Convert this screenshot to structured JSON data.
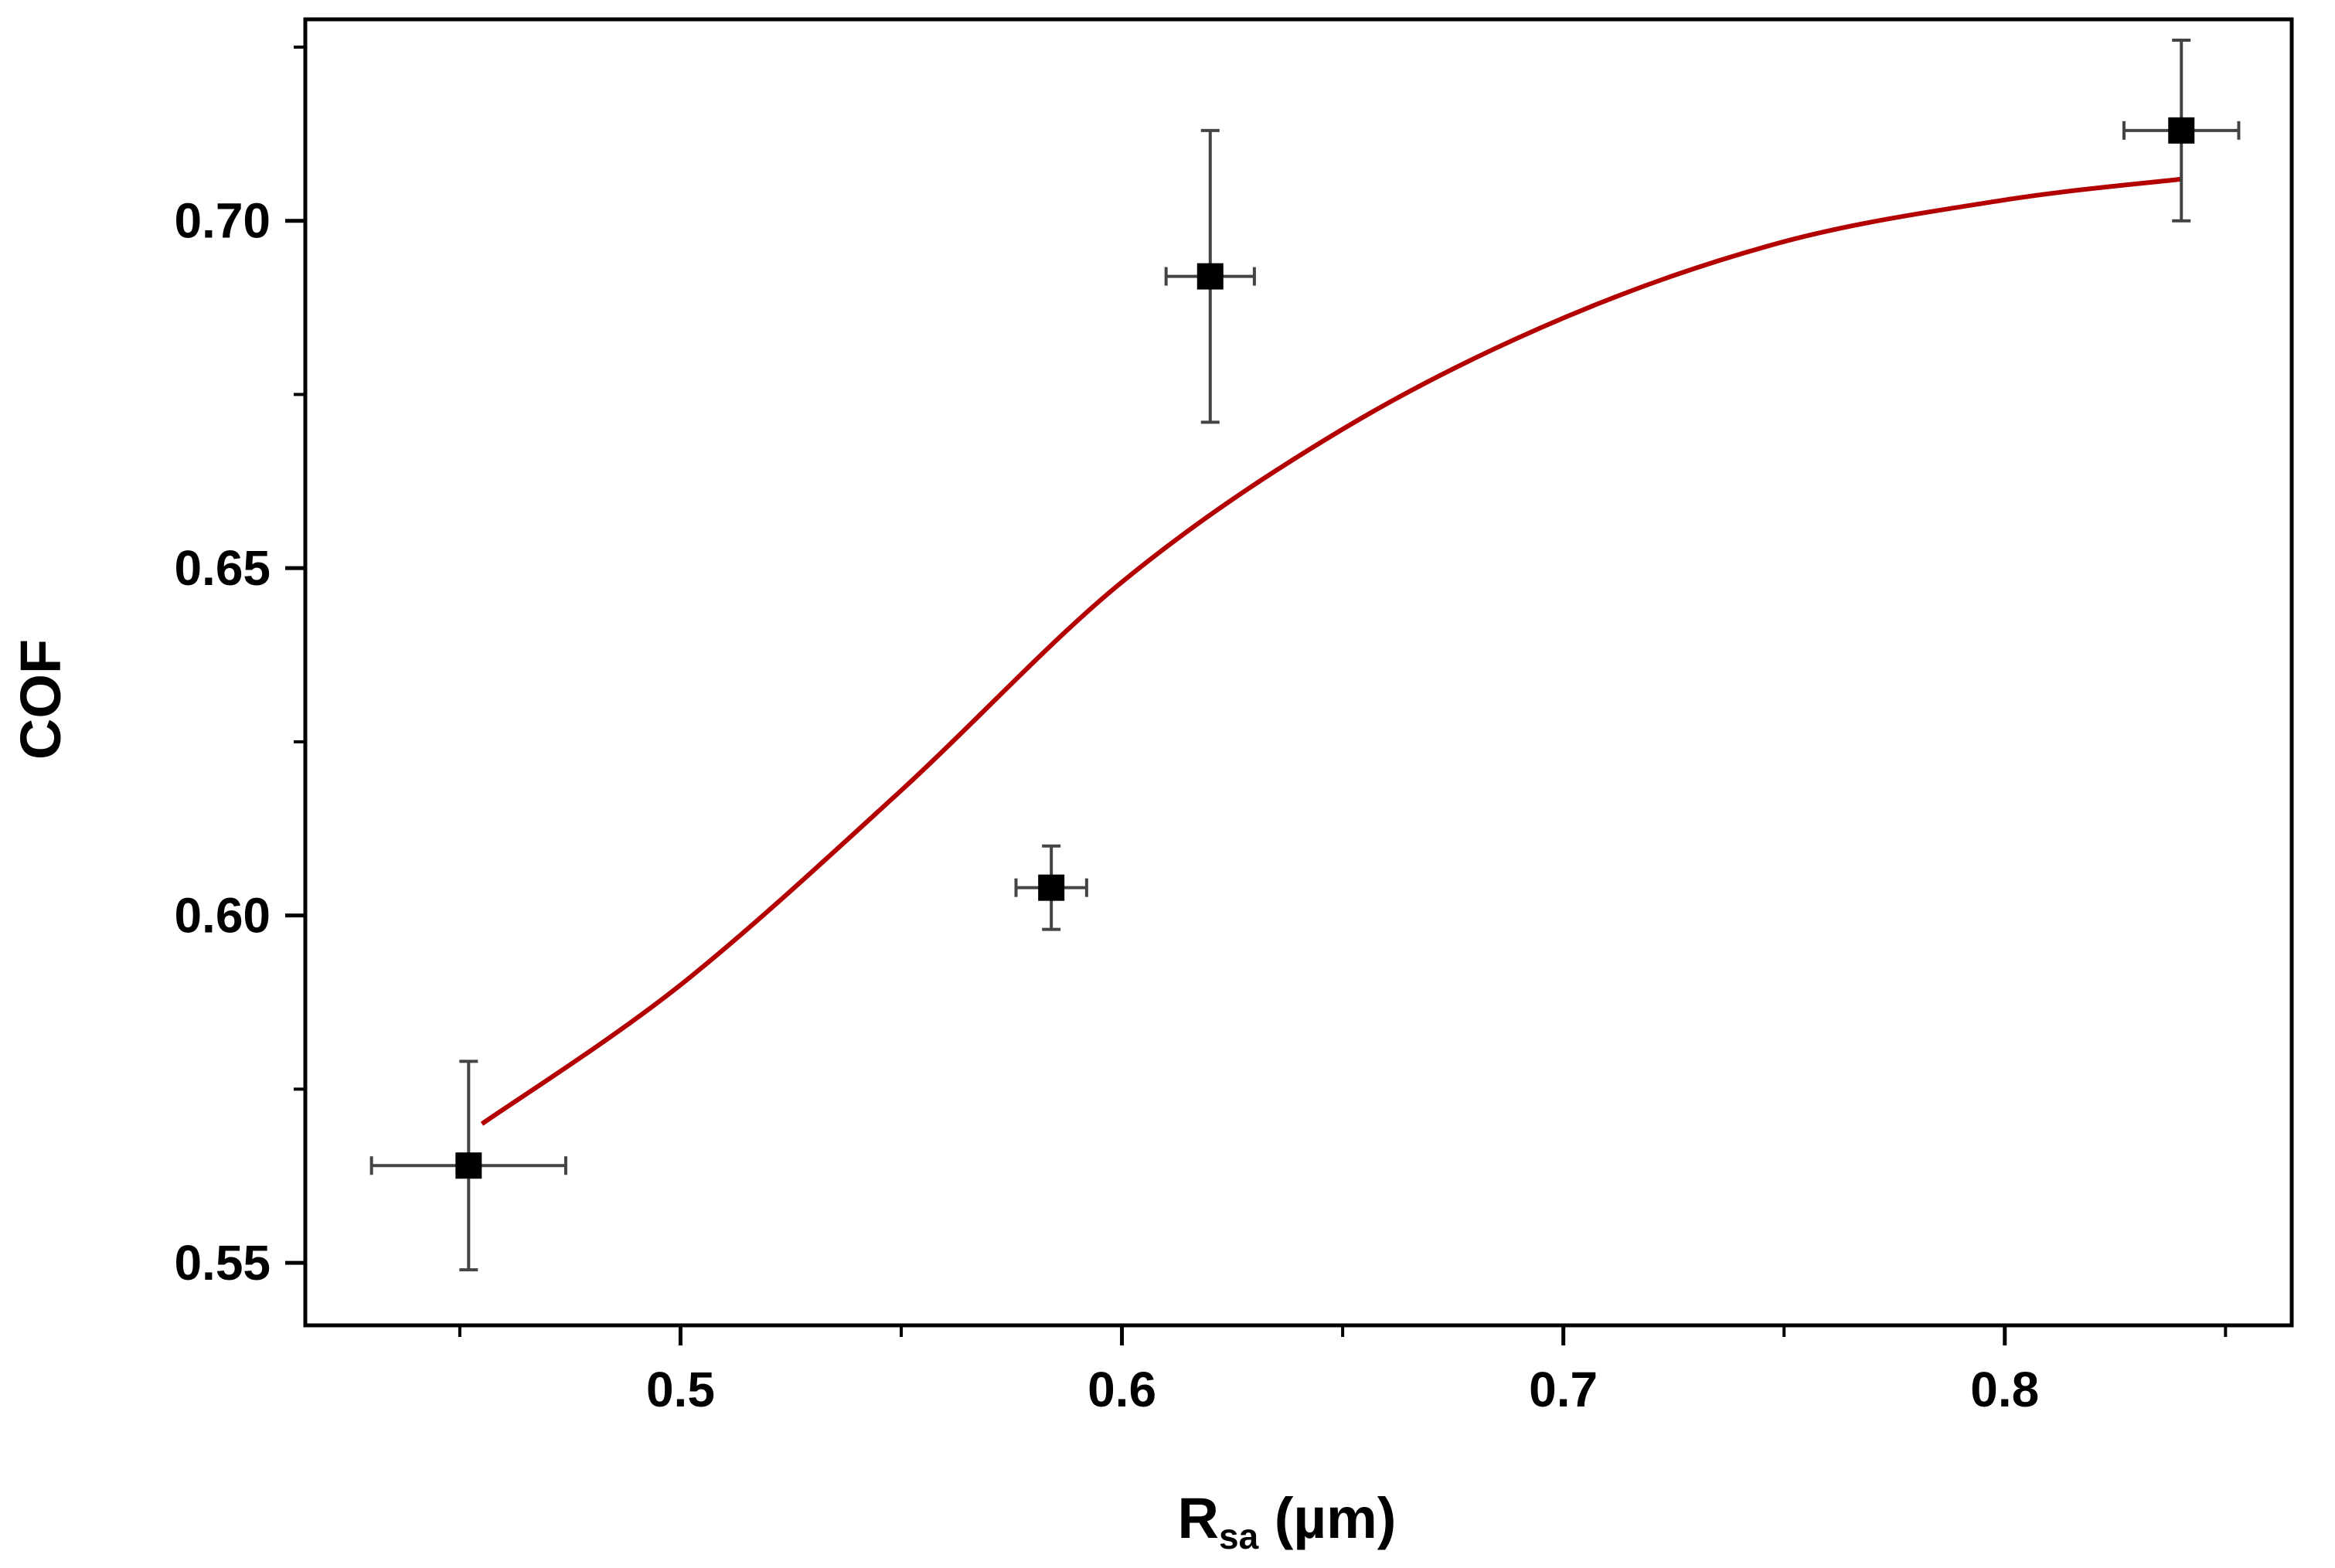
{
  "chart_data": {
    "type": "scatter",
    "xlabel_main": "R",
    "xlabel_sub": "sa",
    "xlabel_unit": " (µm)",
    "ylabel": "COF",
    "xlim": [
      0.415,
      0.865
    ],
    "ylim": [
      0.541,
      0.729
    ],
    "x_ticks": [
      0.5,
      0.6,
      0.7,
      0.8
    ],
    "x_tick_labels": [
      "0.5",
      "0.6",
      "0.7",
      "0.8"
    ],
    "x_minor_ticks": [
      0.45,
      0.55,
      0.65,
      0.75,
      0.85
    ],
    "y_ticks": [
      0.55,
      0.6,
      0.65,
      0.7
    ],
    "y_tick_labels": [
      "0.55",
      "0.60",
      "0.65",
      "0.70"
    ],
    "y_minor_ticks": [
      0.575,
      0.625,
      0.675,
      0.725
    ],
    "grid": false,
    "points": [
      {
        "x": 0.452,
        "y": 0.564,
        "xerr": 0.022,
        "yerr": 0.015
      },
      {
        "x": 0.584,
        "y": 0.604,
        "xerr": 0.008,
        "yerr": 0.006
      },
      {
        "x": 0.62,
        "y": 0.692,
        "xerr": 0.01,
        "yerr": 0.021
      },
      {
        "x": 0.84,
        "y": 0.713,
        "xerr": 0.013,
        "yerr": 0.013
      }
    ],
    "fit_curve": {
      "x": [
        0.455,
        0.5,
        0.55,
        0.6,
        0.65,
        0.7,
        0.75,
        0.8,
        0.84
      ],
      "y": [
        0.57,
        0.59,
        0.618,
        0.648,
        0.67,
        0.686,
        0.697,
        0.703,
        0.706
      ]
    },
    "colors": {
      "marker": "#000000",
      "error_bar": "#444444",
      "fit_line": "#b30000",
      "axis": "#000000"
    }
  }
}
